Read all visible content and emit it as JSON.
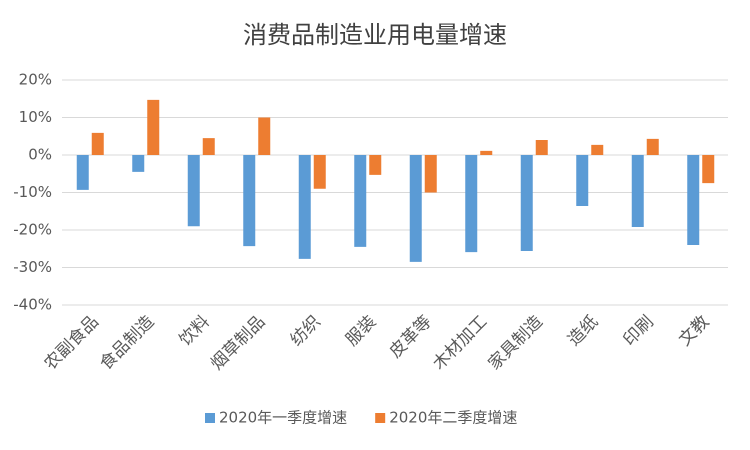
{
  "chart_data": {
    "type": "bar",
    "title": "消费品制造业用电量增速",
    "categories": [
      "农副食品",
      "食品制造",
      "饮料",
      "烟草制品",
      "纺织",
      "服装",
      "皮革等",
      "木材加工",
      "家具制造",
      "造纸",
      "印刷",
      "文教"
    ],
    "series": [
      {
        "name": "2020年一季度增速",
        "color": "#5b9bd5",
        "values": [
          -9.3,
          -4.5,
          -19,
          -24.3,
          -27.7,
          -24.5,
          -28.5,
          -25.9,
          -25.6,
          -13.6,
          -19.2,
          -24
        ]
      },
      {
        "name": "2020年二季度增速",
        "color": "#ed7d31",
        "values": [
          5.9,
          14.7,
          4.5,
          10,
          -9,
          -5.3,
          -10,
          1.1,
          4,
          2.7,
          4.3,
          -7.5
        ]
      }
    ],
    "ylim": [
      -40,
      20
    ],
    "yticks": [
      {
        "value": -40,
        "label": "-40%"
      },
      {
        "value": -30,
        "label": "-30%"
      },
      {
        "value": -20,
        "label": "-20%"
      },
      {
        "value": -10,
        "label": "-10%"
      },
      {
        "value": 0,
        "label": "0%"
      },
      {
        "value": 10,
        "label": "10%"
      },
      {
        "value": 20,
        "label": "20%"
      }
    ],
    "grid": true,
    "legend": "bottom"
  }
}
